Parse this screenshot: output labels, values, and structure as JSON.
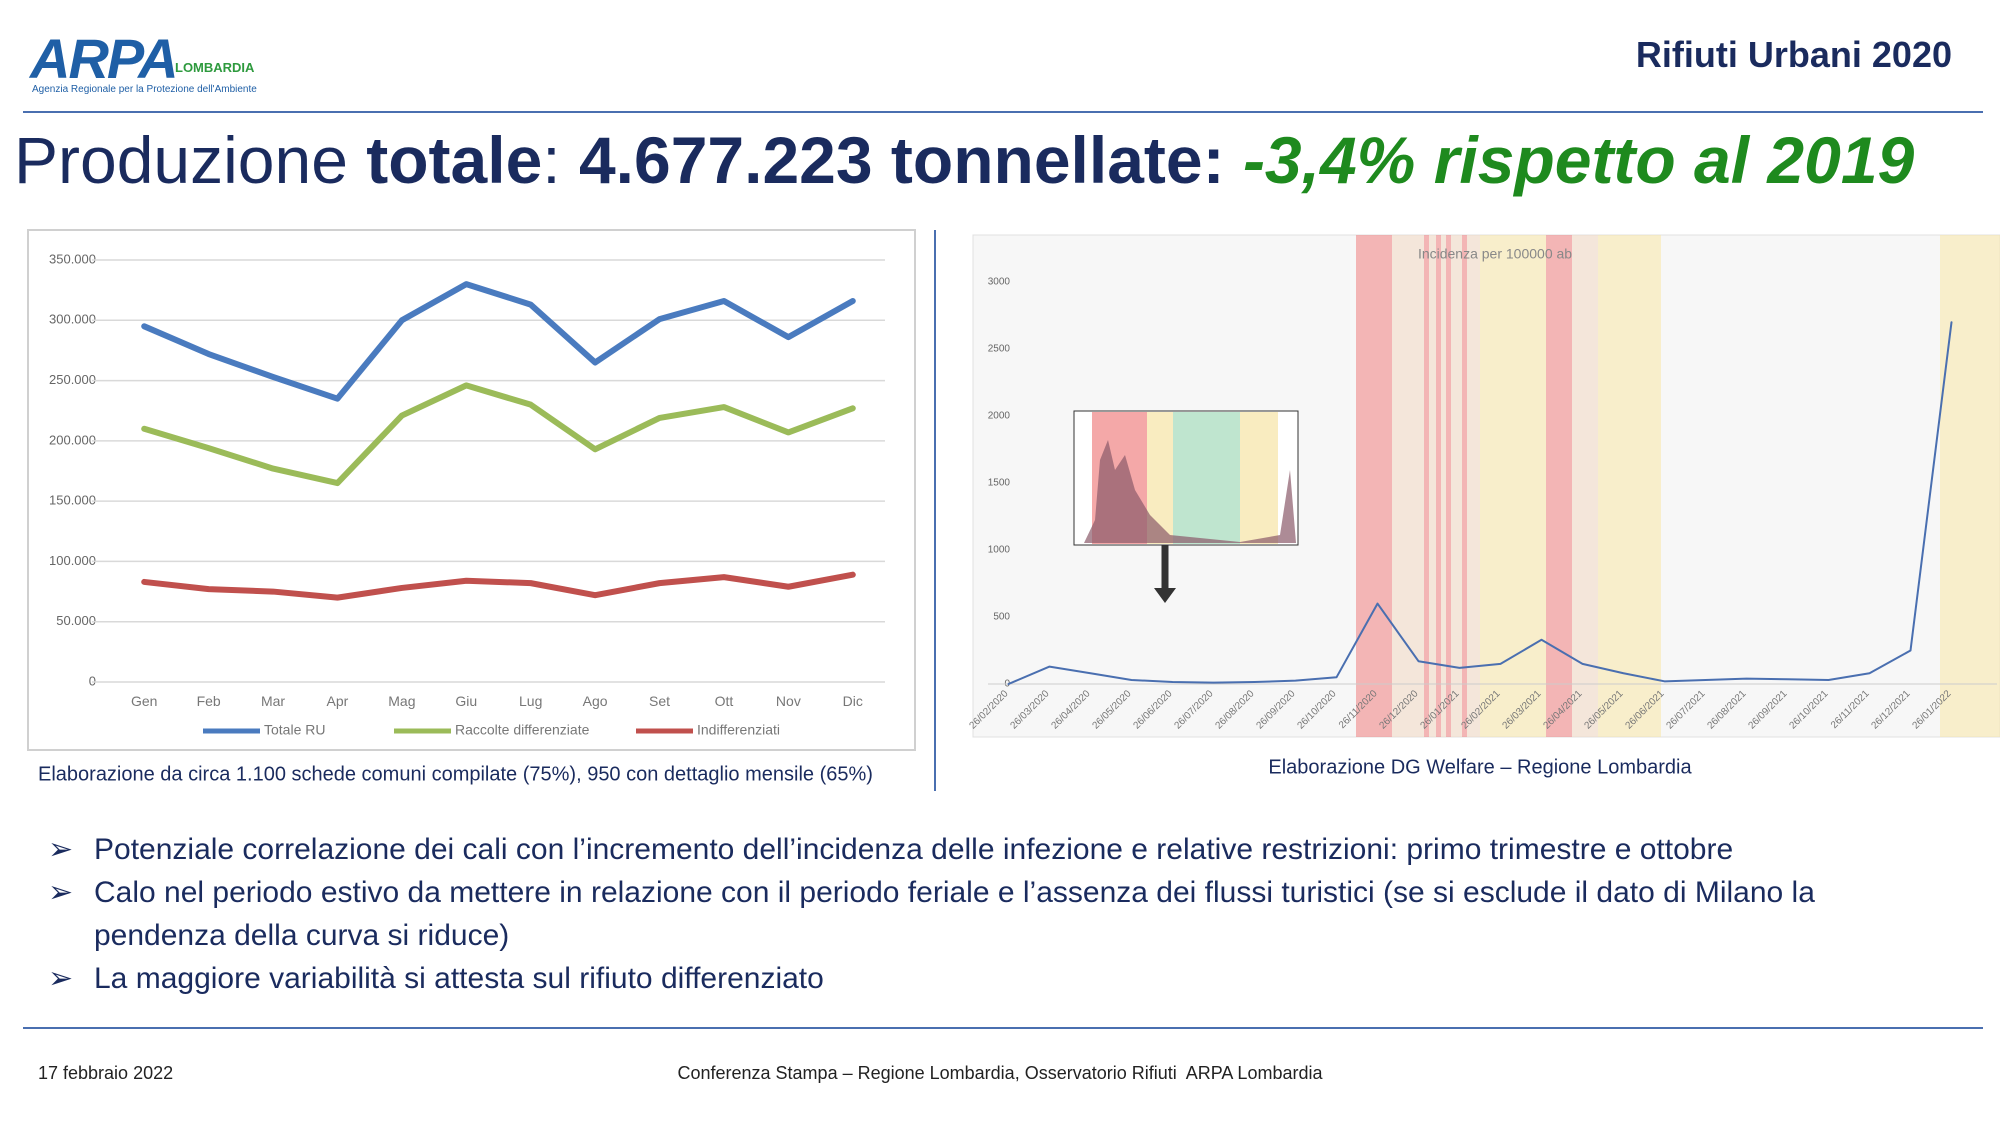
{
  "header": {
    "logo": "ARPA",
    "logo_region": "LOMBARDIA",
    "logo_subtitle": "Agenzia Regionale per la Protezione dell'Ambiente",
    "section": "Rifiuti Urbani 2020"
  },
  "title": {
    "part1": "Produzione ",
    "part2": "totale",
    "part3": ": ",
    "part4": "4.677.223 tonnellate:",
    "part5": " -3,4% rispetto al 2019"
  },
  "chart_data": [
    {
      "type": "line",
      "caption": "Elaborazione da circa 1.100 schede comuni compilate (75%), 950 con dettaglio mensile (65%)",
      "categories": [
        "Gen",
        "Feb",
        "Mar",
        "Apr",
        "Mag",
        "Giu",
        "Lug",
        "Ago",
        "Set",
        "Ott",
        "Nov",
        "Dic"
      ],
      "series": [
        {
          "name": "Totale RU",
          "color": "#4a7bbf",
          "values": [
            295000,
            272000,
            253000,
            235000,
            300000,
            330000,
            313000,
            265000,
            301000,
            316000,
            286000,
            316000
          ]
        },
        {
          "name": "Raccolte differenziate",
          "color": "#9bbb59",
          "values": [
            210000,
            194000,
            177000,
            165000,
            221000,
            246000,
            230000,
            193000,
            219000,
            228000,
            207000,
            227000
          ]
        },
        {
          "name": "Indifferenziati",
          "color": "#c0504d",
          "values": [
            83000,
            77000,
            75000,
            70000,
            78000,
            84000,
            82000,
            72000,
            82000,
            87000,
            79000,
            89000
          ]
        }
      ],
      "ylim": [
        0,
        350000
      ],
      "yticks": [
        0,
        {
          "value": 50000,
          "label": "50.000"
        },
        {
          "value": 100000,
          "label": "100.000"
        },
        {
          "value": 150000,
          "label": "150.000"
        },
        {
          "value": 200000,
          "label": "200.000"
        },
        {
          "value": 250000,
          "label": "250.000"
        },
        {
          "value": 300000,
          "label": "300.000"
        },
        {
          "value": 350000,
          "label": "350.000"
        }
      ],
      "grid": true,
      "legend": "bottom"
    },
    {
      "type": "line",
      "title": "Incidenza per 100000 ab",
      "caption": "Elaborazione DG Welfare – Regione Lombardia",
      "categories": [
        "26/02/2020",
        "26/03/2020",
        "26/04/2020",
        "26/05/2020",
        "26/06/2020",
        "26/07/2020",
        "26/08/2020",
        "26/09/2020",
        "26/10/2020",
        "26/11/2020",
        "26/12/2020",
        "26/01/2021",
        "26/02/2021",
        "26/03/2021",
        "26/04/2021",
        "26/05/2021",
        "26/06/2021",
        "26/07/2021",
        "26/08/2021",
        "26/09/2021",
        "26/10/2021",
        "26/11/2021",
        "26/12/2021",
        "26/01/2022"
      ],
      "color": "#4a6fb0",
      "values": [
        0,
        130,
        80,
        30,
        15,
        10,
        15,
        25,
        50,
        600,
        170,
        120,
        150,
        330,
        150,
        80,
        20,
        30,
        40,
        35,
        30,
        80,
        250,
        2700
      ],
      "ylim": [
        0,
        3000
      ],
      "yticks": [
        0,
        500,
        1000,
        1500,
        2000,
        2500,
        3000
      ],
      "grid": false
    }
  ],
  "bullets": [
    "Potenziale correlazione dei cali con l’incremento dell’incidenza delle infezione e relative restrizioni: primo trimestre e ottobre",
    "Calo nel periodo estivo da mettere in relazione con il periodo feriale e l’assenza dei flussi turistici (se si esclude il dato di Milano la pendenza della curva si riduce)",
    "La maggiore variabilità si attesta sul rifiuto differenziato"
  ],
  "footer": {
    "date": "17 febbraio 2022",
    "event": "Conferenza Stampa – Regione Lombardia, Osservatorio Rifiuti  ARPA Lombardia"
  }
}
